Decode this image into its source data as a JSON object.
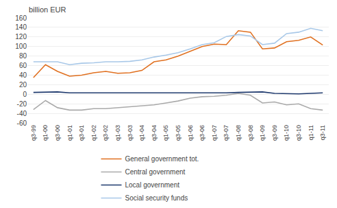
{
  "chart_data": {
    "type": "line",
    "ylabel": "billion EUR",
    "categories": [
      "q3-99",
      "q1-00",
      "q3-00",
      "q1-01",
      "q3-01",
      "q1-02",
      "q3-02",
      "q1-03",
      "q3-03",
      "q1-04",
      "q3-04",
      "q1-05",
      "q3-05",
      "q1-06",
      "q3-06",
      "q1-07",
      "q3-07",
      "q1-08",
      "q3-08",
      "q1-09",
      "q3-09",
      "q1-10",
      "q3-10",
      "q1-11",
      "q3-11"
    ],
    "series": [
      {
        "name": "General government tot.",
        "color": "#E07020",
        "values": [
          35,
          62,
          48,
          38,
          40,
          45,
          48,
          44,
          45,
          50,
          68,
          72,
          80,
          90,
          100,
          105,
          104,
          133,
          130,
          95,
          97,
          110,
          113,
          120,
          103
        ]
      },
      {
        "name": "Central government",
        "color": "#AAAAAA",
        "values": [
          -32,
          -13,
          -28,
          -33,
          -33,
          -30,
          -30,
          -28,
          -27,
          -24,
          -22,
          -18,
          -14,
          -8,
          -5,
          -4,
          -2,
          2,
          -2,
          -18,
          -16,
          -22,
          -20,
          -30,
          -33
        ]
      },
      {
        "name": "Local government",
        "color": "#1F3A6E",
        "values": [
          4,
          4,
          5,
          3,
          3,
          3,
          3,
          2,
          3,
          2,
          2,
          2,
          2,
          3,
          3,
          3,
          3,
          4,
          4,
          5,
          2,
          1,
          1,
          2,
          3
        ]
      },
      {
        "name": "Social security funds",
        "color": "#A8C8E8",
        "values": [
          68,
          68,
          68,
          62,
          65,
          66,
          68,
          68,
          69,
          72,
          78,
          82,
          87,
          95,
          104,
          108,
          121,
          125,
          122,
          104,
          107,
          127,
          130,
          138,
          133
        ]
      }
    ],
    "ylim": [
      -60,
      160
    ],
    "yticks": [
      -60,
      -40,
      -20,
      0,
      20,
      40,
      60,
      80,
      100,
      120,
      140,
      160
    ],
    "grid": true,
    "legend": "bottom"
  }
}
